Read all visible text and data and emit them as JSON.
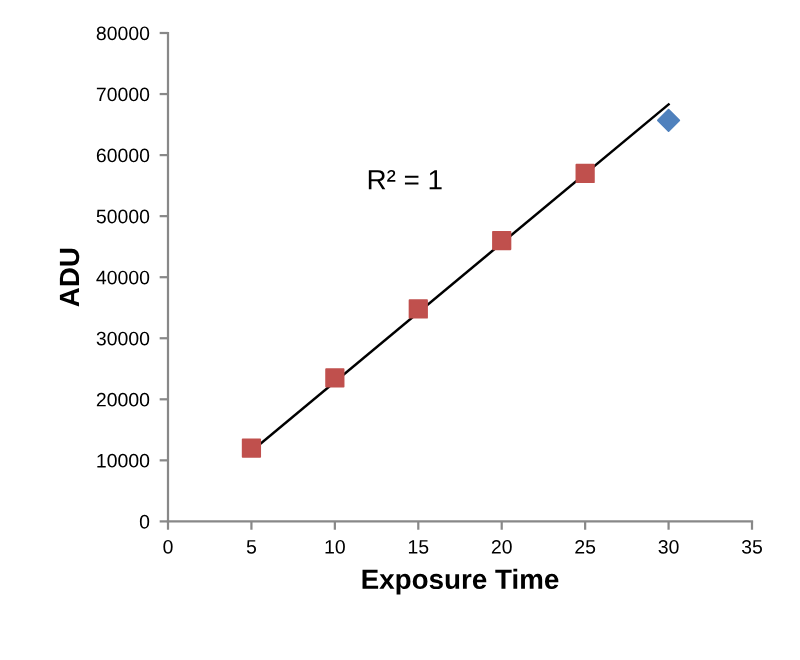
{
  "chart_data": {
    "type": "scatter",
    "xlabel": "Exposure Time",
    "ylabel": "ADU",
    "series": [
      {
        "color": "#c0504d",
        "marker": "square",
        "x": [
          5,
          10,
          15,
          20,
          25
        ],
        "values": [
          12000,
          23500,
          34800,
          46000,
          57000
        ]
      },
      {
        "color": "#4f81bd",
        "marker": "diamond",
        "x": [
          30
        ],
        "values": [
          65700
        ]
      },
      {
        "type": "line",
        "color": "#000000",
        "marker": "none",
        "x": [
          5,
          30
        ],
        "values": [
          11500,
          68300
        ]
      }
    ],
    "annotations": [
      "R² = 1"
    ],
    "xlim": [
      0,
      35
    ],
    "xticks": [
      0,
      5,
      10,
      15,
      20,
      25,
      30,
      35
    ],
    "ylim": [
      0,
      80000
    ],
    "yticks": [
      0,
      10000,
      20000,
      30000,
      40000,
      50000,
      60000,
      70000,
      80000
    ],
    "grid": false,
    "legend": false
  }
}
